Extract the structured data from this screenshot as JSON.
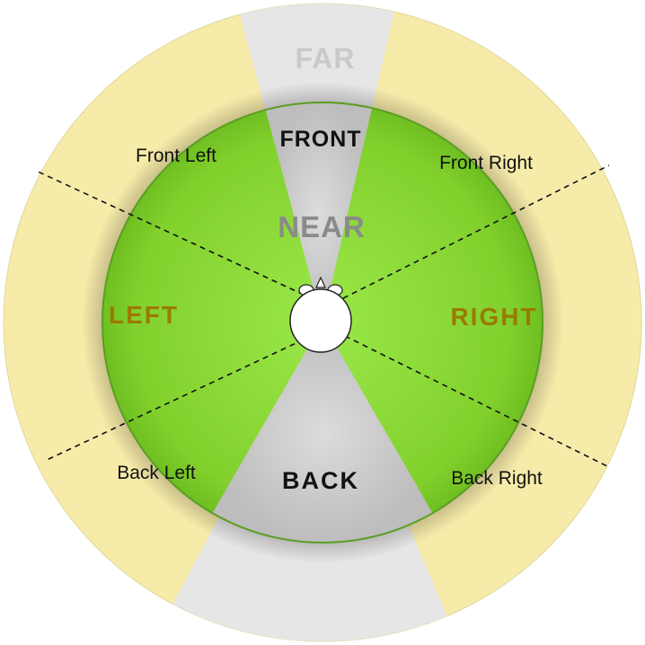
{
  "labels": {
    "far": "FAR",
    "front": "FRONT",
    "near": "NEAR",
    "back": "BACK",
    "left": "LEFT",
    "right": "RIGHT",
    "front_left": "Front Left",
    "front_right": "Front Right",
    "back_left": "Back Left",
    "back_right": "Back Right"
  },
  "colors": {
    "outer_ring_yellow": "#f7ebaa",
    "outer_ring_gray": "#e6e6e6",
    "inner_green": "#8ad633",
    "inner_green_edge": "#5a9e22",
    "inner_gray": "#cccccc",
    "side_label": "#9a7a00",
    "dashed_lines": "#111111"
  }
}
